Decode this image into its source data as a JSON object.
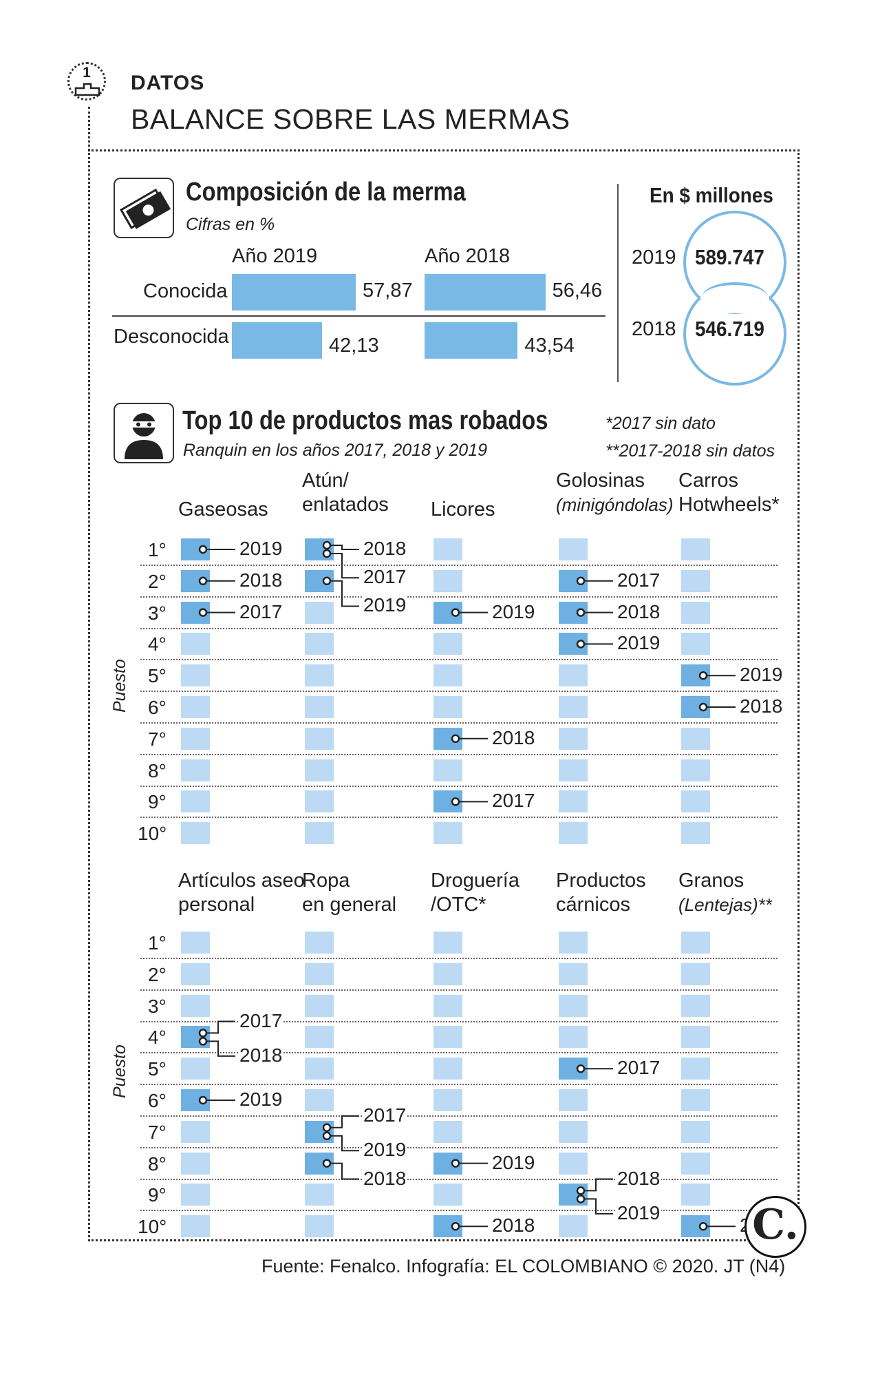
{
  "header": {
    "badge": "1",
    "kicker": "DATOS",
    "title": "BALANCE SOBRE LAS MERMAS"
  },
  "composition": {
    "title": "Composición de la merma",
    "subtitle": "Cifras en %",
    "icon": "money-bill-icon",
    "colors": {
      "bar": "#7ab9e6"
    }
  },
  "chart_data": [
    {
      "type": "bar",
      "title": "Composición de la merma",
      "subtitle": "Cifras en %",
      "categories": [
        "Conocida",
        "Desconocida"
      ],
      "series": [
        {
          "name": "Año 2019",
          "values": [
            57.87,
            42.13
          ],
          "labels": [
            "57,87",
            "42,13"
          ]
        },
        {
          "name": "Año 2018",
          "values": [
            56.46,
            43.54
          ],
          "labels": [
            "56,46",
            "43,54"
          ]
        }
      ]
    },
    {
      "type": "table",
      "title": "En $ millones",
      "rows": [
        {
          "year": "2019",
          "value": "589.747"
        },
        {
          "year": "2018",
          "value": "546.719"
        }
      ]
    },
    {
      "type": "table",
      "title": "Top 10 de productos mas robados",
      "subtitle": "Ranquin en los años 2017, 2018 y 2019",
      "notes": [
        "*2017 sin dato",
        "**2017-2018 sin datos"
      ],
      "ylabel": "Puesto",
      "ranks": [
        "1°",
        "2°",
        "3°",
        "4°",
        "5°",
        "6°",
        "7°",
        "8°",
        "9°",
        "10°"
      ],
      "groups": [
        {
          "categories": [
            {
              "name": "Gaseosas",
              "sub": "",
              "ranks": [
                {
                  "year": "2019",
                  "rank": 1
                },
                {
                  "year": "2018",
                  "rank": 2
                },
                {
                  "year": "2017",
                  "rank": 3
                }
              ]
            },
            {
              "name": "Atún/ enlatados",
              "sub": "",
              "ranks": [
                {
                  "year": "2018",
                  "rank": 1
                },
                {
                  "year": "2017",
                  "rank": 1
                },
                {
                  "year": "2019",
                  "rank": 2
                }
              ]
            },
            {
              "name": "Licores",
              "sub": "",
              "ranks": [
                {
                  "year": "2019",
                  "rank": 3
                },
                {
                  "year": "2018",
                  "rank": 7
                },
                {
                  "year": "2017",
                  "rank": 9
                }
              ]
            },
            {
              "name": "Golosinas",
              "sub": "(minigóndolas)",
              "ranks": [
                {
                  "year": "2017",
                  "rank": 2
                },
                {
                  "year": "2018",
                  "rank": 3
                },
                {
                  "year": "2019",
                  "rank": 4
                }
              ]
            },
            {
              "name": "Carros Hotwheels*",
              "sub": "",
              "ranks": [
                {
                  "year": "2019",
                  "rank": 5
                },
                {
                  "year": "2018",
                  "rank": 6
                }
              ]
            }
          ]
        },
        {
          "categories": [
            {
              "name": "Artículos aseo personal",
              "sub": "",
              "ranks": [
                {
                  "year": "2017",
                  "rank": 4
                },
                {
                  "year": "2018",
                  "rank": 4
                },
                {
                  "year": "2019",
                  "rank": 6
                }
              ]
            },
            {
              "name": "Ropa en general",
              "sub": "",
              "ranks": [
                {
                  "year": "2017",
                  "rank": 7
                },
                {
                  "year": "2019",
                  "rank": 7
                },
                {
                  "year": "2018",
                  "rank": 8
                }
              ]
            },
            {
              "name": "Droguería /OTC*",
              "sub": "",
              "ranks": [
                {
                  "year": "2019",
                  "rank": 8
                },
                {
                  "year": "2018",
                  "rank": 10
                }
              ]
            },
            {
              "name": "Productos cárnicos",
              "sub": "",
              "ranks": [
                {
                  "year": "2017",
                  "rank": 5
                },
                {
                  "year": "2018",
                  "rank": 9
                },
                {
                  "year": "2019",
                  "rank": 9
                }
              ]
            },
            {
              "name": "Granos",
              "sub": "(Lentejas)**",
              "ranks": [
                {
                  "year": "2019",
                  "rank": 10
                }
              ]
            }
          ]
        }
      ]
    }
  ],
  "money": {
    "title": "En $ millones",
    "color": "#7ab9e6"
  },
  "top10": {
    "title": "Top 10 de productos mas robados",
    "icon": "thief-icon",
    "puesto": "Puesto",
    "colors": {
      "cell": "#bcdaf3",
      "active": "#6fb0e2"
    }
  },
  "footer": {
    "source": "Fuente: Fenalco. Infografía: EL COLOMBIANO © 2020. JT (N4)",
    "logo": "C."
  }
}
